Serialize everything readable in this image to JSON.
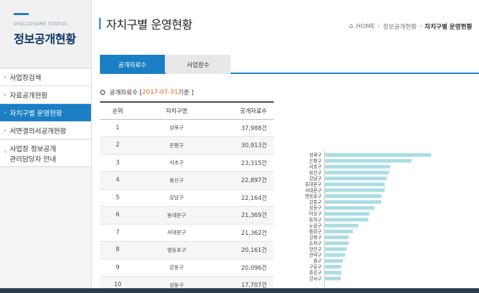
{
  "sidebar": {
    "subtitle": "DISCLOSURE STATUS",
    "title": "정보공개현황",
    "items": [
      {
        "label": "사업장검색",
        "active": false
      },
      {
        "label": "자료공개현황",
        "active": false
      },
      {
        "label": "자치구별 운영현황",
        "active": true
      },
      {
        "label": "서면결의서공개현황",
        "active": false
      },
      {
        "label_line1": "사업장 정보공개",
        "label_line2": "관리담당자 안내",
        "active": false
      }
    ]
  },
  "header": {
    "title": "자치구별 운영현황",
    "breadcrumb": [
      "HOME",
      "정보공개현황",
      "자치구별 운영현황"
    ]
  },
  "tabs": [
    {
      "label": "공개자료수",
      "active": true
    },
    {
      "label": "사업장수",
      "active": false
    }
  ],
  "subheading": {
    "prefix": "공개자료수 [ ",
    "date": "2017-07-31",
    "suffix": " 기준 ]"
  },
  "table": {
    "headers": [
      "순위",
      "자치구명",
      "공개자료수"
    ],
    "rows": [
      {
        "rank": "1",
        "name": "성북구",
        "count": "37,988건"
      },
      {
        "rank": "2",
        "name": "은평구",
        "count": "30,913건"
      },
      {
        "rank": "3",
        "name": "서초구",
        "count": "23,315건"
      },
      {
        "rank": "4",
        "name": "용산구",
        "count": "22,897건"
      },
      {
        "rank": "5",
        "name": "강남구",
        "count": "22,164건"
      },
      {
        "rank": "6",
        "name": "동대문구",
        "count": "21,369건"
      },
      {
        "rank": "7",
        "name": "서대문구",
        "count": "21,362건"
      },
      {
        "rank": "8",
        "name": "영등포구",
        "count": "20,161건"
      },
      {
        "rank": "9",
        "name": "강동구",
        "count": "20,096건"
      },
      {
        "rank": "10",
        "name": "성동구",
        "count": "17,707건"
      }
    ]
  },
  "chart_data": {
    "type": "bar",
    "orientation": "horizontal",
    "color": "#a9dde3",
    "categories": [
      "성북구",
      "은평구",
      "서초구",
      "용산구",
      "강남구",
      "동대문구",
      "서대문구",
      "영등포구",
      "강동구",
      "성동구",
      "마포구",
      "동작구",
      "노원구",
      "중랑구",
      "강북구",
      "송파구",
      "양천구",
      "관악구",
      "중구",
      "구로구",
      "종로구",
      "강서구"
    ],
    "values": [
      37988,
      30913,
      23315,
      22897,
      22164,
      21369,
      21362,
      20161,
      20096,
      17707,
      15900,
      15500,
      11900,
      10000,
      8500,
      8400,
      7700,
      7200,
      6400,
      5900,
      5800,
      5700
    ]
  }
}
